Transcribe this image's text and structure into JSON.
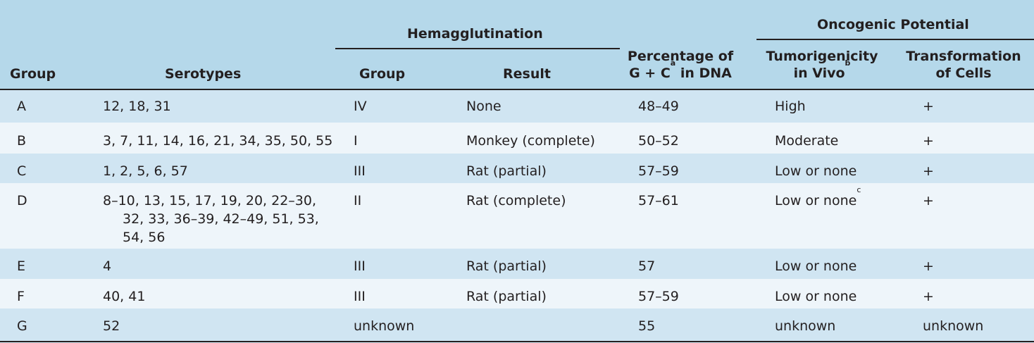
{
  "header": {
    "hemagglutination": "Hemagglutination",
    "oncogenic_potential": "Oncogenic Potential",
    "group": "Group",
    "serotypes": "Serotypes",
    "hem_group": "Group",
    "result": "Result",
    "gc_line1": "Percentage of",
    "gc_line2_prefix": "G + C",
    "gc_sup": "a",
    "gc_line2_suffix": " in DNA",
    "tumor_line1": "Tumorigenicity",
    "tumor_line2": "in Vivo",
    "tumor_sup": "b",
    "transf_line1": "Transformation",
    "transf_line2": "of Cells"
  },
  "rows": [
    {
      "group": "A",
      "serotypes": "12, 18, 31",
      "hem_group": "IV",
      "result": "None",
      "gc": "48–49",
      "tumor": "High",
      "transformation": "+"
    },
    {
      "group": "B",
      "serotypes": "3, 7, 11, 14, 16, 21, 34, 35, 50, 55",
      "hem_group": "I",
      "result": "Monkey (complete)",
      "gc": "50–52",
      "tumor": "Moderate",
      "transformation": "+"
    },
    {
      "group": "C",
      "serotypes": "1, 2, 5, 6, 57",
      "hem_group": "III",
      "result": "Rat (partial)",
      "gc": "57–59",
      "tumor": "Low or none",
      "transformation": "+"
    },
    {
      "group": "D",
      "serotypes_line1": "8–10, 13, 15, 17, 19, 20, 22–30,",
      "serotypes_line2": "32, 33, 36–39, 42–49, 51, 53,",
      "serotypes_line3": "54, 56",
      "hem_group": "II",
      "result": "Rat (complete)",
      "gc": "57–61",
      "tumor": "Low or none",
      "tumor_sup": "c",
      "transformation": "+"
    },
    {
      "group": "E",
      "serotypes": "4",
      "hem_group": "III",
      "result": "Rat (partial)",
      "gc": "57",
      "tumor": "Low or none",
      "transformation": "+"
    },
    {
      "group": "F",
      "serotypes": "40, 41",
      "hem_group": "III",
      "result": "Rat (partial)",
      "gc": "57–59",
      "tumor": "Low or none",
      "transformation": "+"
    },
    {
      "group": "G",
      "serotypes": "52",
      "hem_group": "unknown",
      "result": "",
      "gc": "55",
      "tumor": "unknown",
      "transformation": "unknown"
    }
  ]
}
